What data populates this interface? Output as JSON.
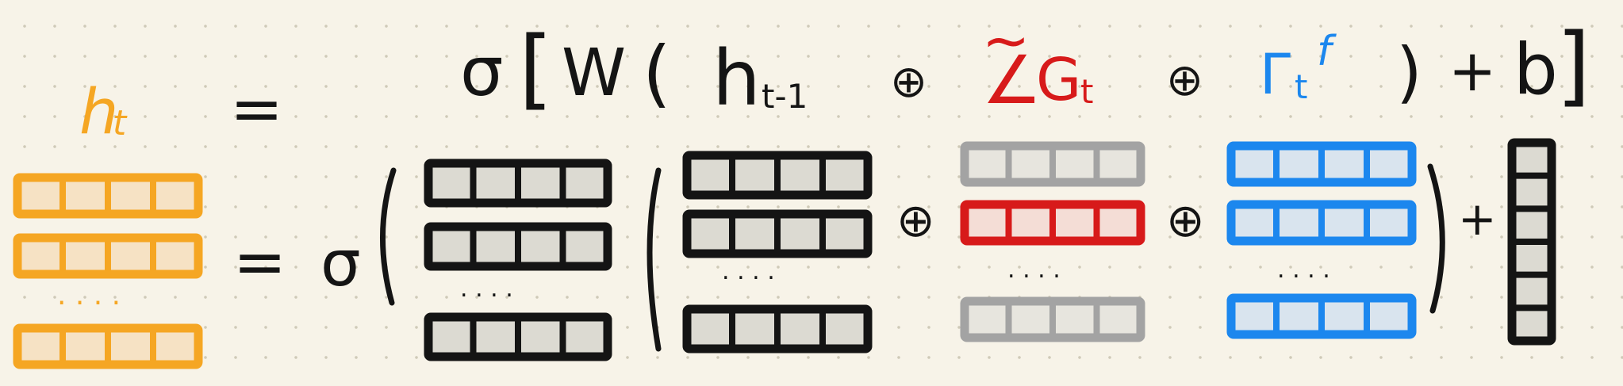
{
  "equation": {
    "lhs": "h",
    "lhs_sub": "t",
    "equals": "=",
    "sigma": "σ",
    "open_bracket": "[",
    "W": "W",
    "open_paren": "(",
    "h_prev": "h",
    "h_prev_sub": "t-1",
    "oplus1": "⊕",
    "tilde": "~",
    "angle": "∠",
    "G": "G",
    "G_sub": "t",
    "oplus2": "⊕",
    "gamma": "Γ",
    "gamma_sub": "t",
    "gamma_sup": "f",
    "close_paren": ")",
    "plus": "+",
    "b": "b",
    "close_bracket": "]"
  },
  "matrix_row": {
    "equals": "=",
    "sigma": "σ",
    "dots": ". . . .",
    "oplus": "⊕",
    "plus": "+"
  },
  "colors": {
    "orange": "#f5a623",
    "black": "#141414",
    "gray": "#a3a3a3",
    "red": "#d71a1a",
    "blue": "#1c87ee",
    "cell_fill": "#dcdad2",
    "orange_cell": "#f6e2c4",
    "red_cell": "#f4ddd6",
    "blue_cell": "#d9e4ee",
    "gray_cell": "#e7e5de"
  }
}
